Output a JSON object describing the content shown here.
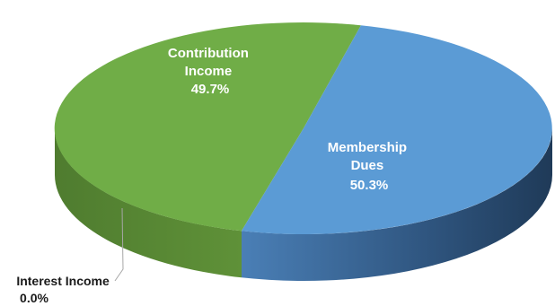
{
  "chart_data": {
    "type": "pie",
    "style": "3d",
    "slices": [
      {
        "name": "Contribution Income",
        "label_lines": [
          "Contribution",
          "Income"
        ],
        "value": 49.7,
        "label": "49.7%",
        "color": "#70ad47"
      },
      {
        "name": "Membership Dues",
        "label_lines": [
          "Membership",
          "Dues"
        ],
        "value": 50.3,
        "label": "50.3%",
        "color": "#5b9bd5"
      },
      {
        "name": "Interest Income",
        "label_lines": [
          "Interest Income"
        ],
        "value": 0.0,
        "label": "0.0%",
        "color": "#a5a5a5"
      }
    ]
  }
}
